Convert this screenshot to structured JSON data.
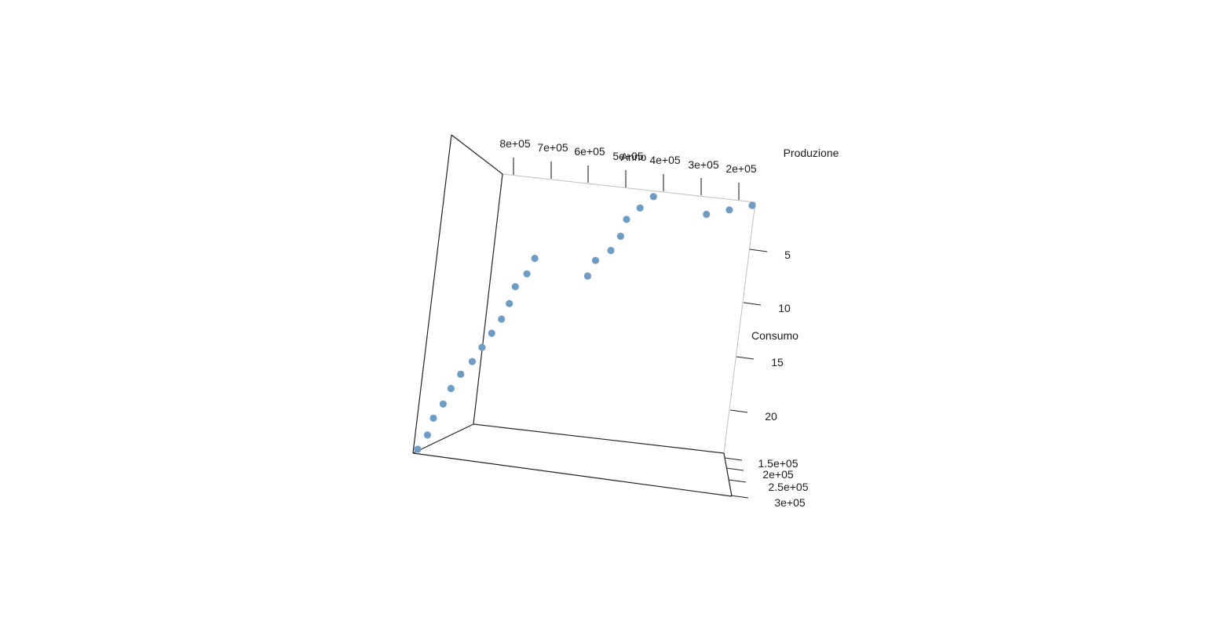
{
  "chart_data": {
    "type": "scatter",
    "projection": "3d",
    "title": "",
    "point_color": "#6f9cc3",
    "axis_color": "#222222",
    "axes": {
      "x": {
        "label": "Produzione",
        "ticks": [
          "8e+05",
          "7e+05",
          "6e+05",
          "5e+05",
          "4e+05",
          "3e+05",
          "2e+05"
        ]
      },
      "y": {
        "label": "Consumo",
        "ticks": [
          "1.5e+05",
          "2e+05",
          "2.5e+05",
          "3e+05"
        ]
      },
      "z": {
        "label": "Anno",
        "ticks": [
          "5",
          "10",
          "15",
          "20"
        ],
        "range": [
          1,
          24
        ]
      }
    },
    "points": [
      {
        "anno": 1,
        "produzione": 190000
      },
      {
        "anno": 2,
        "produzione": 240000
      },
      {
        "anno": 3,
        "produzione": 290000
      },
      {
        "anno": 4,
        "produzione": 420000
      },
      {
        "anno": 5,
        "produzione": 445000
      },
      {
        "anno": 6,
        "produzione": 470000
      },
      {
        "anno": 7,
        "produzione": 475000
      },
      {
        "anno": 8,
        "produzione": 490000
      },
      {
        "anno": 9,
        "produzione": 520000
      },
      {
        "anno": 10,
        "produzione": 530000
      },
      {
        "anno": 11,
        "produzione": 660000
      },
      {
        "anno": 12,
        "produzione": 670000
      },
      {
        "anno": 13,
        "produzione": 690000
      },
      {
        "anno": 14,
        "produzione": 695000
      },
      {
        "anno": 15,
        "produzione": 705000
      },
      {
        "anno": 16,
        "produzione": 720000
      },
      {
        "anno": 17,
        "produzione": 735000
      },
      {
        "anno": 18,
        "produzione": 750000
      },
      {
        "anno": 19,
        "produzione": 770000
      },
      {
        "anno": 20,
        "produzione": 785000
      },
      {
        "anno": 21,
        "produzione": 795000
      },
      {
        "anno": 22,
        "produzione": 810000
      },
      {
        "anno": 23,
        "produzione": 815000
      },
      {
        "anno": 24,
        "produzione": 830000
      }
    ],
    "grid": false,
    "legend": "none"
  }
}
